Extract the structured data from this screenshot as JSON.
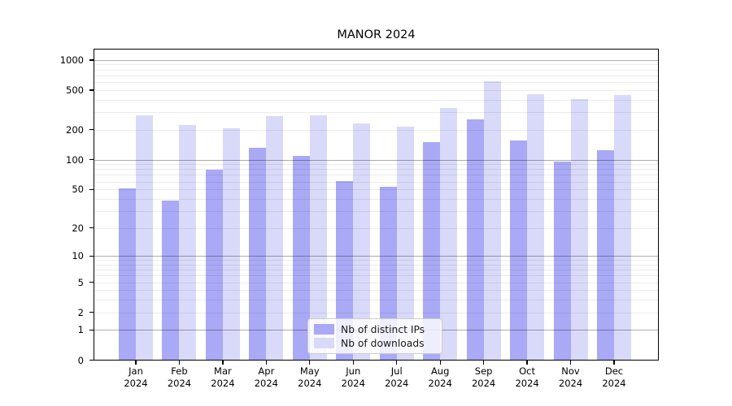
{
  "chart_data": {
    "type": "bar",
    "title": "MANOR 2024",
    "categories": [
      "Jan 2024",
      "Feb 2024",
      "Mar 2024",
      "Apr 2024",
      "May 2024",
      "Jun 2024",
      "Jul 2024",
      "Aug 2024",
      "Sep 2024",
      "Oct 2024",
      "Nov 2024",
      "Dec 2024"
    ],
    "series": [
      {
        "name": "Nb of distinct IPs",
        "color": "#a9a9f5",
        "values": [
          51,
          38,
          79,
          131,
          108,
          61,
          53,
          150,
          255,
          156,
          95,
          125
        ]
      },
      {
        "name": "Nb of downloads",
        "color": "#d9d9f9",
        "values": [
          279,
          222,
          206,
          272,
          279,
          231,
          215,
          332,
          613,
          454,
          408,
          444
        ]
      }
    ],
    "y_scale": "log1p",
    "y_ticks": [
      0,
      1,
      2,
      5,
      10,
      20,
      50,
      100,
      200,
      500,
      1000
    ],
    "ylim": [
      0,
      1300
    ],
    "xlabel": "",
    "ylabel": "",
    "grid": true,
    "legend_position": "lower-center"
  },
  "colors": {
    "background": "#ffffff",
    "axis": "#000000",
    "major_grid": "#b0b0b0",
    "minor_grid": "#ececec"
  }
}
